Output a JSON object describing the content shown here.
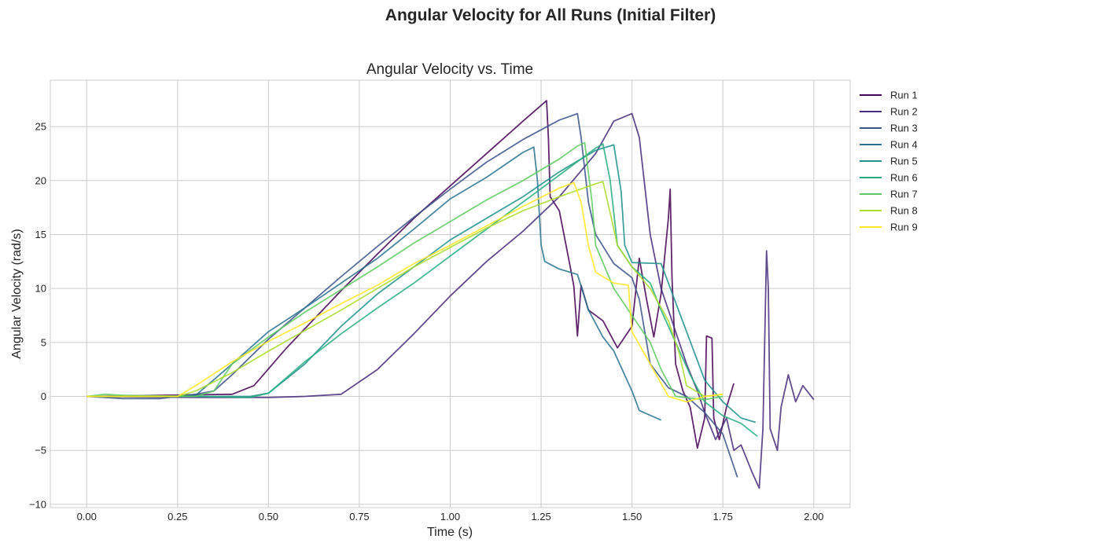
{
  "figure": {
    "suptitle": "Angular Velocity for All Runs (Initial Filter)"
  },
  "chart_data": {
    "type": "line",
    "title": "Angular Velocity vs. Time",
    "xlabel": "Time (s)",
    "ylabel": "Angular Velocity (rad/s)",
    "xlim": [
      -0.1,
      2.1
    ],
    "ylim": [
      -10.3,
      29.3
    ],
    "xticks": [
      0.0,
      0.25,
      0.5,
      0.75,
      1.0,
      1.25,
      1.5,
      1.75,
      2.0
    ],
    "xtick_labels": [
      "0.00",
      "0.25",
      "0.50",
      "0.75",
      "1.00",
      "1.25",
      "1.50",
      "1.75",
      "2.00"
    ],
    "yticks": [
      -10,
      -5,
      0,
      5,
      10,
      15,
      20,
      25
    ],
    "ytick_labels": [
      "−10",
      "−5",
      "0",
      "5",
      "10",
      "15",
      "20",
      "25"
    ],
    "grid": true,
    "legend_position": "outside-right",
    "series": [
      {
        "name": "Run 1",
        "color": "#440154",
        "points": [
          [
            0,
            0
          ],
          [
            0.2,
            0.1
          ],
          [
            0.4,
            0.2
          ],
          [
            0.46,
            1
          ],
          [
            0.55,
            4.5
          ],
          [
            0.7,
            9.8
          ],
          [
            0.8,
            13.2
          ],
          [
            0.9,
            16.5
          ],
          [
            1.0,
            19.5
          ],
          [
            1.1,
            22.5
          ],
          [
            1.2,
            25.5
          ],
          [
            1.265,
            27.4
          ],
          [
            1.27,
            24
          ],
          [
            1.275,
            18.5
          ],
          [
            1.3,
            17.2
          ],
          [
            1.33,
            12
          ],
          [
            1.34,
            10.2
          ],
          [
            1.35,
            5.6
          ],
          [
            1.36,
            10.3
          ],
          [
            1.38,
            8
          ],
          [
            1.42,
            7
          ],
          [
            1.46,
            4.5
          ],
          [
            1.5,
            6.5
          ],
          [
            1.52,
            12.8
          ],
          [
            1.54,
            9
          ],
          [
            1.56,
            5.5
          ],
          [
            1.58,
            9.5
          ],
          [
            1.6,
            16.5
          ],
          [
            1.605,
            19.2
          ],
          [
            1.61,
            11
          ],
          [
            1.62,
            3
          ],
          [
            1.64,
            0.5
          ],
          [
            1.66,
            -1
          ],
          [
            1.68,
            -4.8
          ],
          [
            1.7,
            -2
          ],
          [
            1.705,
            5.6
          ],
          [
            1.72,
            5.4
          ],
          [
            1.725,
            -2
          ],
          [
            1.74,
            -4
          ],
          [
            1.76,
            -1
          ],
          [
            1.78,
            1.2
          ]
        ]
      },
      {
        "name": "Run 2",
        "color": "#472d7b",
        "points": [
          [
            0,
            0
          ],
          [
            0.3,
            -0.1
          ],
          [
            0.5,
            -0.1
          ],
          [
            0.6,
            0
          ],
          [
            0.7,
            0.2
          ],
          [
            0.8,
            2.5
          ],
          [
            0.9,
            5.8
          ],
          [
            1.0,
            9.3
          ],
          [
            1.1,
            12.5
          ],
          [
            1.2,
            15.3
          ],
          [
            1.3,
            18.5
          ],
          [
            1.4,
            22.5
          ],
          [
            1.45,
            25.5
          ],
          [
            1.5,
            26.2
          ],
          [
            1.52,
            24
          ],
          [
            1.55,
            15
          ],
          [
            1.58,
            10
          ],
          [
            1.6,
            8
          ],
          [
            1.62,
            6
          ],
          [
            1.65,
            3
          ],
          [
            1.68,
            0.5
          ],
          [
            1.7,
            -1.5
          ],
          [
            1.73,
            -4
          ],
          [
            1.76,
            -2
          ],
          [
            1.78,
            -5
          ],
          [
            1.8,
            -4.5
          ],
          [
            1.83,
            -7
          ],
          [
            1.85,
            -8.5
          ],
          [
            1.86,
            -3
          ],
          [
            1.87,
            13.5
          ],
          [
            1.875,
            10
          ],
          [
            1.88,
            -3
          ],
          [
            1.9,
            -5
          ],
          [
            1.91,
            -1
          ],
          [
            1.93,
            2
          ],
          [
            1.95,
            -0.5
          ],
          [
            1.97,
            1
          ],
          [
            2.0,
            -0.3
          ]
        ]
      },
      {
        "name": "Run 3",
        "color": "#3b528b",
        "points": [
          [
            0,
            0
          ],
          [
            0.1,
            -0.2
          ],
          [
            0.2,
            -0.2
          ],
          [
            0.3,
            0.2
          ],
          [
            0.35,
            0.5
          ],
          [
            0.4,
            2
          ],
          [
            0.5,
            5.3
          ],
          [
            0.6,
            8.2
          ],
          [
            0.7,
            11.1
          ],
          [
            0.8,
            13.9
          ],
          [
            0.9,
            16.6
          ],
          [
            1.0,
            19.2
          ],
          [
            1.1,
            21.7
          ],
          [
            1.2,
            23.8
          ],
          [
            1.3,
            25.6
          ],
          [
            1.35,
            26.2
          ],
          [
            1.36,
            24
          ],
          [
            1.38,
            18
          ],
          [
            1.4,
            15
          ],
          [
            1.45,
            12.3
          ],
          [
            1.5,
            11
          ],
          [
            1.52,
            9
          ],
          [
            1.55,
            3
          ],
          [
            1.6,
            0.8
          ],
          [
            1.65,
            0
          ],
          [
            1.7,
            -1.5
          ],
          [
            1.75,
            -3.5
          ],
          [
            1.79,
            -7.5
          ]
        ]
      },
      {
        "name": "Run 4",
        "color": "#2c728e",
        "points": [
          [
            0,
            0
          ],
          [
            0.2,
            0
          ],
          [
            0.3,
            0.1
          ],
          [
            0.4,
            3
          ],
          [
            0.5,
            6
          ],
          [
            0.6,
            8.2
          ],
          [
            0.7,
            10.5
          ],
          [
            0.8,
            12.8
          ],
          [
            0.9,
            15.5
          ],
          [
            1.0,
            18.3
          ],
          [
            1.1,
            20.3
          ],
          [
            1.2,
            22.6
          ],
          [
            1.23,
            23.1
          ],
          [
            1.24,
            20
          ],
          [
            1.25,
            14
          ],
          [
            1.26,
            12.5
          ],
          [
            1.3,
            11.8
          ],
          [
            1.35,
            11.3
          ],
          [
            1.38,
            8
          ],
          [
            1.42,
            5.5
          ],
          [
            1.45,
            4.2
          ],
          [
            1.5,
            0.5
          ],
          [
            1.52,
            -1.3
          ],
          [
            1.58,
            -2.2
          ]
        ]
      },
      {
        "name": "Run 5",
        "color": "#21918c",
        "points": [
          [
            0,
            0
          ],
          [
            0.3,
            0
          ],
          [
            0.45,
            0
          ],
          [
            0.5,
            0.3
          ],
          [
            0.6,
            3
          ],
          [
            0.7,
            6.5
          ],
          [
            0.8,
            9.5
          ],
          [
            0.9,
            12
          ],
          [
            1.0,
            14.5
          ],
          [
            1.1,
            16.5
          ],
          [
            1.2,
            18.5
          ],
          [
            1.3,
            20.8
          ],
          [
            1.4,
            22.8
          ],
          [
            1.45,
            23.3
          ],
          [
            1.47,
            19
          ],
          [
            1.48,
            14
          ],
          [
            1.5,
            12.4
          ],
          [
            1.58,
            12.3
          ],
          [
            1.6,
            10.5
          ],
          [
            1.65,
            6
          ],
          [
            1.7,
            1.5
          ],
          [
            1.75,
            -0.5
          ],
          [
            1.8,
            -2
          ],
          [
            1.84,
            -2.4
          ]
        ]
      },
      {
        "name": "Run 6",
        "color": "#28ae80",
        "points": [
          [
            0,
            0
          ],
          [
            0.3,
            0
          ],
          [
            0.45,
            -0.1
          ],
          [
            0.5,
            0.3
          ],
          [
            0.6,
            3.2
          ],
          [
            0.7,
            5.8
          ],
          [
            0.8,
            8.2
          ],
          [
            0.9,
            10.5
          ],
          [
            1.0,
            13
          ],
          [
            1.1,
            15.5
          ],
          [
            1.2,
            18
          ],
          [
            1.3,
            20.5
          ],
          [
            1.4,
            23
          ],
          [
            1.42,
            23.4
          ],
          [
            1.44,
            20
          ],
          [
            1.46,
            14
          ],
          [
            1.5,
            12
          ],
          [
            1.55,
            10.5
          ],
          [
            1.58,
            8
          ],
          [
            1.62,
            5
          ],
          [
            1.66,
            2
          ],
          [
            1.7,
            -0.5
          ],
          [
            1.75,
            -1.8
          ],
          [
            1.8,
            -2.5
          ],
          [
            1.845,
            -3.7
          ]
        ]
      },
      {
        "name": "Run 7",
        "color": "#5ec962",
        "points": [
          [
            0,
            0
          ],
          [
            0.05,
            0.2
          ],
          [
            0.1,
            0.1
          ],
          [
            0.3,
            0
          ],
          [
            0.35,
            0.5
          ],
          [
            0.4,
            3
          ],
          [
            0.5,
            5.5
          ],
          [
            0.6,
            7.8
          ],
          [
            0.7,
            9.9
          ],
          [
            0.8,
            12
          ],
          [
            0.9,
            14.2
          ],
          [
            1.0,
            16.2
          ],
          [
            1.1,
            18.2
          ],
          [
            1.2,
            20
          ],
          [
            1.3,
            22
          ],
          [
            1.35,
            23.2
          ],
          [
            1.37,
            23.5
          ],
          [
            1.39,
            18
          ],
          [
            1.4,
            14
          ],
          [
            1.45,
            10
          ],
          [
            1.5,
            7.5
          ],
          [
            1.55,
            5
          ],
          [
            1.58,
            2.5
          ],
          [
            1.62,
            0
          ],
          [
            1.7,
            -0.3
          ],
          [
            1.75,
            0
          ]
        ]
      },
      {
        "name": "Run 8",
        "color": "#addc30",
        "points": [
          [
            0,
            0
          ],
          [
            0.25,
            0
          ],
          [
            0.3,
            0.5
          ],
          [
            0.4,
            2.2
          ],
          [
            0.5,
            4.2
          ],
          [
            0.6,
            6.1
          ],
          [
            0.7,
            8
          ],
          [
            0.8,
            10
          ],
          [
            0.9,
            12
          ],
          [
            1.0,
            13.8
          ],
          [
            1.1,
            15.6
          ],
          [
            1.2,
            17.2
          ],
          [
            1.3,
            18.5
          ],
          [
            1.4,
            19.7
          ],
          [
            1.42,
            19.9
          ],
          [
            1.44,
            17
          ],
          [
            1.46,
            14
          ],
          [
            1.5,
            12
          ],
          [
            1.55,
            10
          ],
          [
            1.6,
            7
          ],
          [
            1.63,
            4
          ],
          [
            1.65,
            1
          ],
          [
            1.7,
            0
          ],
          [
            1.75,
            0.2
          ]
        ]
      },
      {
        "name": "Run 9",
        "color": "#fde725",
        "points": [
          [
            0,
            0
          ],
          [
            0.25,
            0
          ],
          [
            0.3,
            1
          ],
          [
            0.4,
            3.2
          ],
          [
            0.5,
            5.1
          ],
          [
            0.6,
            6.8
          ],
          [
            0.7,
            8.6
          ],
          [
            0.8,
            10.3
          ],
          [
            0.9,
            12.3
          ],
          [
            1.0,
            14
          ],
          [
            1.1,
            15.8
          ],
          [
            1.2,
            17.6
          ],
          [
            1.3,
            19.3
          ],
          [
            1.34,
            19.8
          ],
          [
            1.36,
            18
          ],
          [
            1.38,
            14
          ],
          [
            1.4,
            11.5
          ],
          [
            1.45,
            10.5
          ],
          [
            1.49,
            10.3
          ],
          [
            1.5,
            6
          ],
          [
            1.55,
            3
          ],
          [
            1.6,
            0
          ],
          [
            1.65,
            -0.5
          ],
          [
            1.7,
            0
          ],
          [
            1.75,
            0.2
          ]
        ]
      }
    ]
  }
}
